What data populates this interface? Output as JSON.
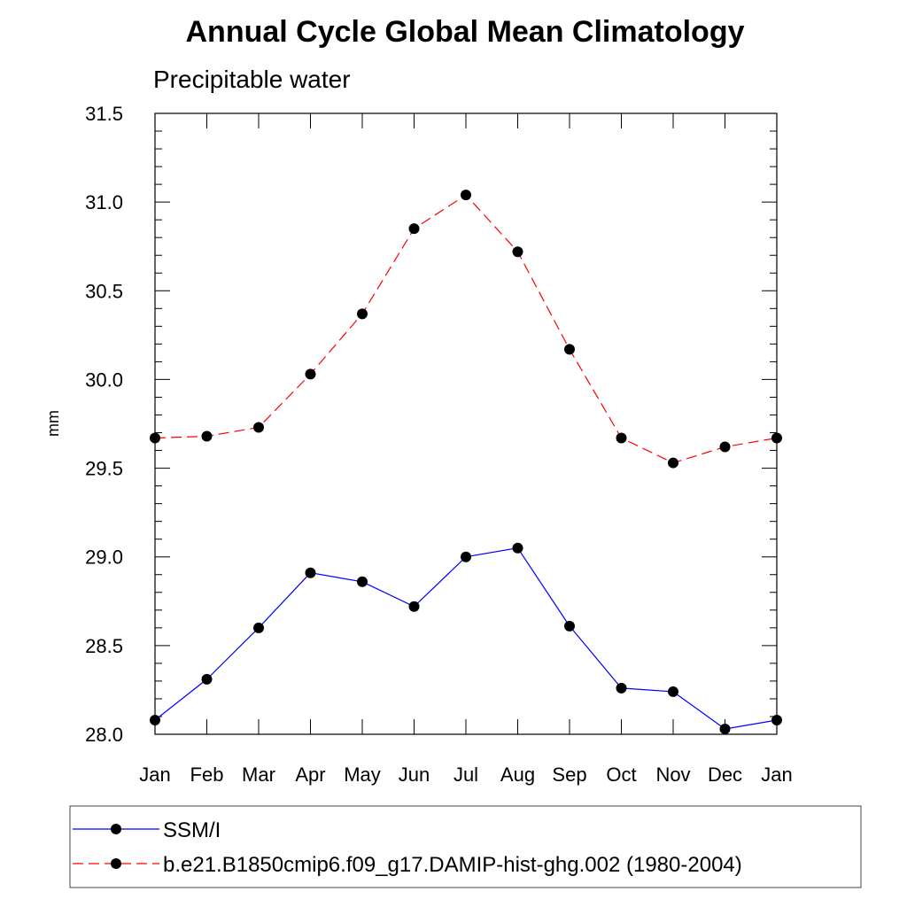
{
  "chart_data": {
    "type": "line",
    "title": "Annual Cycle Global Mean Climatology",
    "subtitle": "Precipitable water",
    "ylabel": "mm",
    "xlabel": "",
    "categories": [
      "Jan",
      "Feb",
      "Mar",
      "Apr",
      "May",
      "Jun",
      "Jul",
      "Aug",
      "Sep",
      "Oct",
      "Nov",
      "Dec",
      "Jan"
    ],
    "ylim": [
      28.0,
      31.5
    ],
    "yticks": [
      28.0,
      28.5,
      29.0,
      29.5,
      30.0,
      30.5,
      31.0,
      31.5
    ],
    "ytick_labels": [
      "28.0",
      "28.5",
      "29.0",
      "29.5",
      "30.0",
      "30.5",
      "31.0",
      "31.5"
    ],
    "grid": false,
    "legend_position": "bottom",
    "series": [
      {
        "name": "SSM/I",
        "color": "#0000ff",
        "line_style": "solid",
        "marker": "filled-circle",
        "values": [
          28.08,
          28.31,
          28.6,
          28.91,
          28.86,
          28.72,
          29.0,
          29.05,
          28.61,
          28.26,
          28.24,
          28.03,
          28.08
        ]
      },
      {
        "name": "b.e21.B1850cmip6.f09_g17.DAMIP-hist-ghg.002 (1980-2004)",
        "color": "#ff0000",
        "line_style": "dashed",
        "marker": "filled-circle",
        "values": [
          29.67,
          29.68,
          29.73,
          30.03,
          30.37,
          30.85,
          31.04,
          30.72,
          30.17,
          29.67,
          29.53,
          29.62,
          29.67
        ]
      }
    ]
  }
}
